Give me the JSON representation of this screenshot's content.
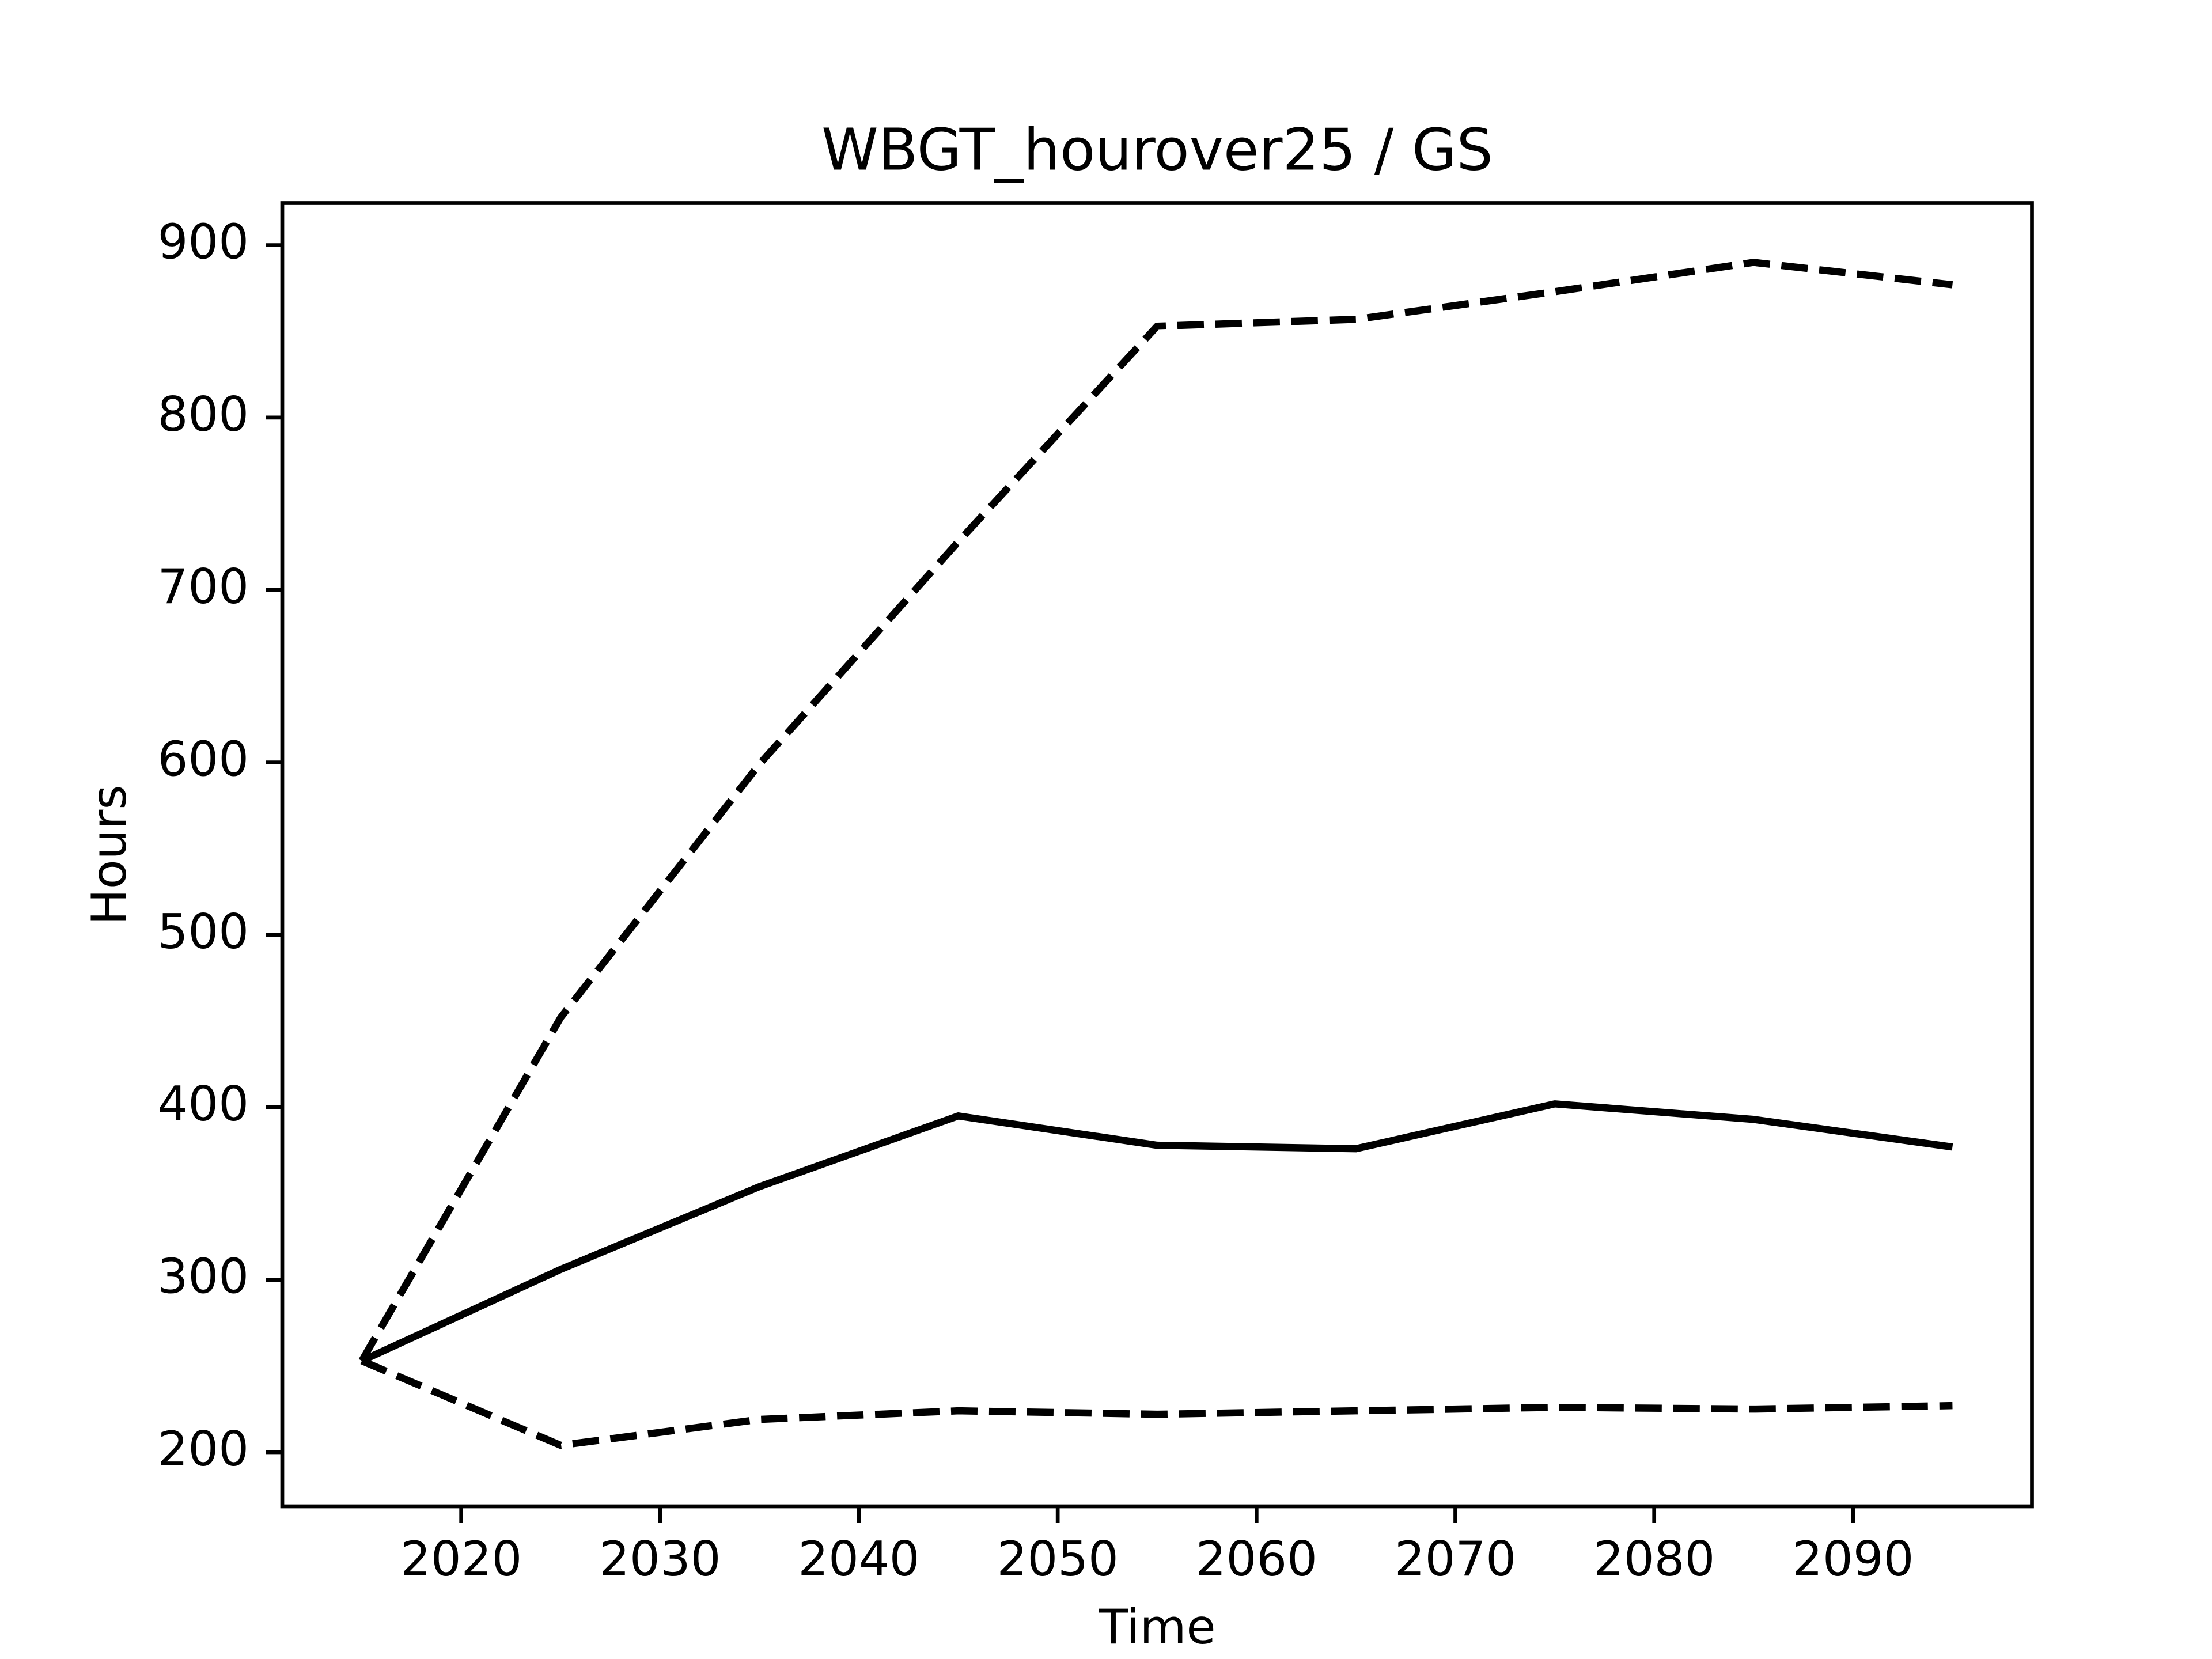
{
  "chart_data": {
    "type": "line",
    "title": "WBGT_hourover25 / GS",
    "x_label": "Time",
    "y_label": "Hours",
    "x": [
      2015,
      2025,
      2035,
      2045,
      2055,
      2065,
      2075,
      2085,
      2095
    ],
    "series": [
      {
        "color": "#000000",
        "linestyle": "solid",
        "values": [
          253,
          306,
          354,
          395,
          378,
          376,
          402,
          393,
          377
        ]
      },
      {
        "color": "#000000",
        "linestyle": "dashed",
        "values": [
          253,
          452,
          599,
          728,
          853,
          857,
          873,
          890,
          877
        ]
      },
      {
        "color": "#000000",
        "linestyle": "dashed",
        "values": [
          253,
          204,
          219,
          224,
          222,
          224,
          226,
          225,
          227
        ]
      }
    ],
    "xlim": [
      2011,
      2099
    ],
    "ylim": [
      168.6,
      924.4
    ],
    "xticks": [
      2020,
      2030,
      2040,
      2050,
      2060,
      2070,
      2080,
      2090
    ],
    "yticks": [
      200,
      300,
      400,
      500,
      600,
      700,
      800,
      900
    ],
    "grid": false
  }
}
